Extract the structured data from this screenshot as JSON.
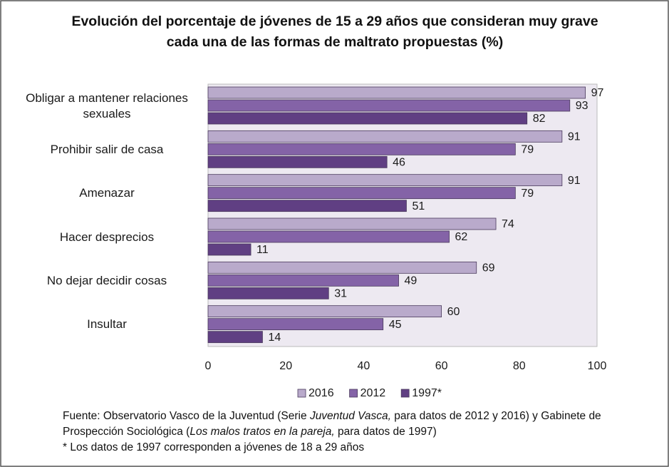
{
  "chart_data": {
    "type": "bar",
    "orientation": "horizontal",
    "title": "Evolución del porcentaje de jóvenes de 15 a 29 años que consideran muy grave cada una de las formas de maltrato propuestas (%)",
    "categories": [
      "Obligar a mantener relaciones sexuales",
      "Prohibir salir de casa",
      "Amenazar",
      "Hacer desprecios",
      "No dejar decidir cosas",
      "Insultar"
    ],
    "series": [
      {
        "name": "2016",
        "color": "#b9aacb",
        "values": [
          97,
          91,
          91,
          74,
          69,
          60
        ]
      },
      {
        "name": "2012",
        "color": "#8463a7",
        "values": [
          93,
          79,
          79,
          62,
          49,
          45
        ]
      },
      {
        "name": "1997*",
        "color": "#603f83",
        "values": [
          82,
          46,
          51,
          11,
          31,
          14
        ]
      }
    ],
    "xlim": [
      0,
      100
    ],
    "xticks": [
      0,
      20,
      40,
      60,
      80,
      100
    ],
    "grid": false,
    "legend": "bottom",
    "source": [
      "Fuente: Observatorio Vasco de la Juventud (Serie ",
      "Juventud Vasca,",
      " para datos de 2012 y 2016) y Gabinete de Prospección Sociológica (",
      "Los malos tratos en la pareja,",
      " para datos de 1997)"
    ],
    "note": "* Los datos de 1997 corresponden a jóvenes de 18 a 29 años"
  }
}
